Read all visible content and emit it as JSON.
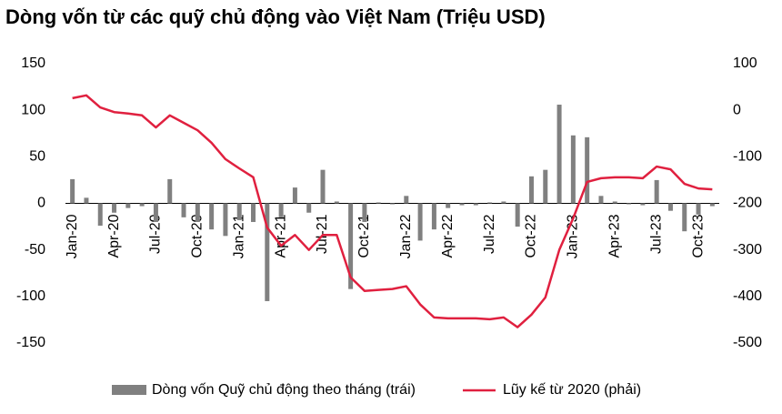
{
  "chart_data": {
    "type": "combo",
    "title": "Dòng vốn từ các quỹ chủ động vào Việt Nam (Triệu USD)",
    "categories": [
      "Jan-20",
      null,
      null,
      "Apr-20",
      null,
      null,
      "Jul-20",
      null,
      null,
      "Oct-20",
      null,
      null,
      "Jan-21",
      null,
      null,
      "Apr-21",
      null,
      null,
      "Jul-21",
      null,
      null,
      "Oct-21",
      null,
      null,
      "Jan-22",
      null,
      null,
      "Apr-22",
      null,
      null,
      "Jul-22",
      null,
      null,
      "Oct-22",
      null,
      null,
      "Jan-23",
      null,
      null,
      "Apr-23",
      null,
      null,
      "Jul-23",
      null,
      null,
      "Oct-23",
      null
    ],
    "series": [
      {
        "name": "Dòng vốn Quỹ chủ động theo tháng (trái)",
        "type": "bar",
        "color": "#808080",
        "axis": "y",
        "values": [
          26,
          6,
          -24,
          -10,
          -5,
          -3,
          -20,
          26,
          -15,
          -20,
          -28,
          -35,
          -18,
          -20,
          -105,
          -15,
          17,
          -10,
          36,
          2,
          -92,
          -20,
          1,
          -1,
          8,
          -40,
          -28,
          -5,
          -2,
          -2,
          1,
          2,
          -25,
          29,
          36,
          106,
          73,
          71,
          8,
          2,
          -1,
          -2,
          25,
          -8,
          -30,
          -12,
          -3
        ]
      },
      {
        "name": "Lũy kế từ 2020 (phải)",
        "type": "line",
        "color": "#e0203f",
        "axis": "y2",
        "values": [
          26,
          32,
          6,
          -4,
          -7,
          -11,
          -37,
          -11,
          -27,
          -43,
          -70,
          -105,
          -125,
          -144,
          -252,
          -291,
          -268,
          -300,
          -268,
          -268,
          -359,
          -388,
          -386,
          -384,
          -378,
          -417,
          -445,
          -447,
          -447,
          -447,
          -449,
          -445,
          -466,
          -439,
          -402,
          -300,
          -232,
          -154,
          -146,
          -144,
          -144,
          -146,
          -121,
          -127,
          -158,
          -168,
          -170
        ]
      }
    ],
    "ylim": [
      -150,
      150
    ],
    "yticks": [
      -150,
      -100,
      -50,
      0,
      50,
      100,
      150
    ],
    "y2lim": [
      -500,
      100
    ],
    "y2ticks": [
      -500,
      -400,
      -300,
      -200,
      -100,
      0,
      100
    ],
    "legend": "bottom"
  }
}
